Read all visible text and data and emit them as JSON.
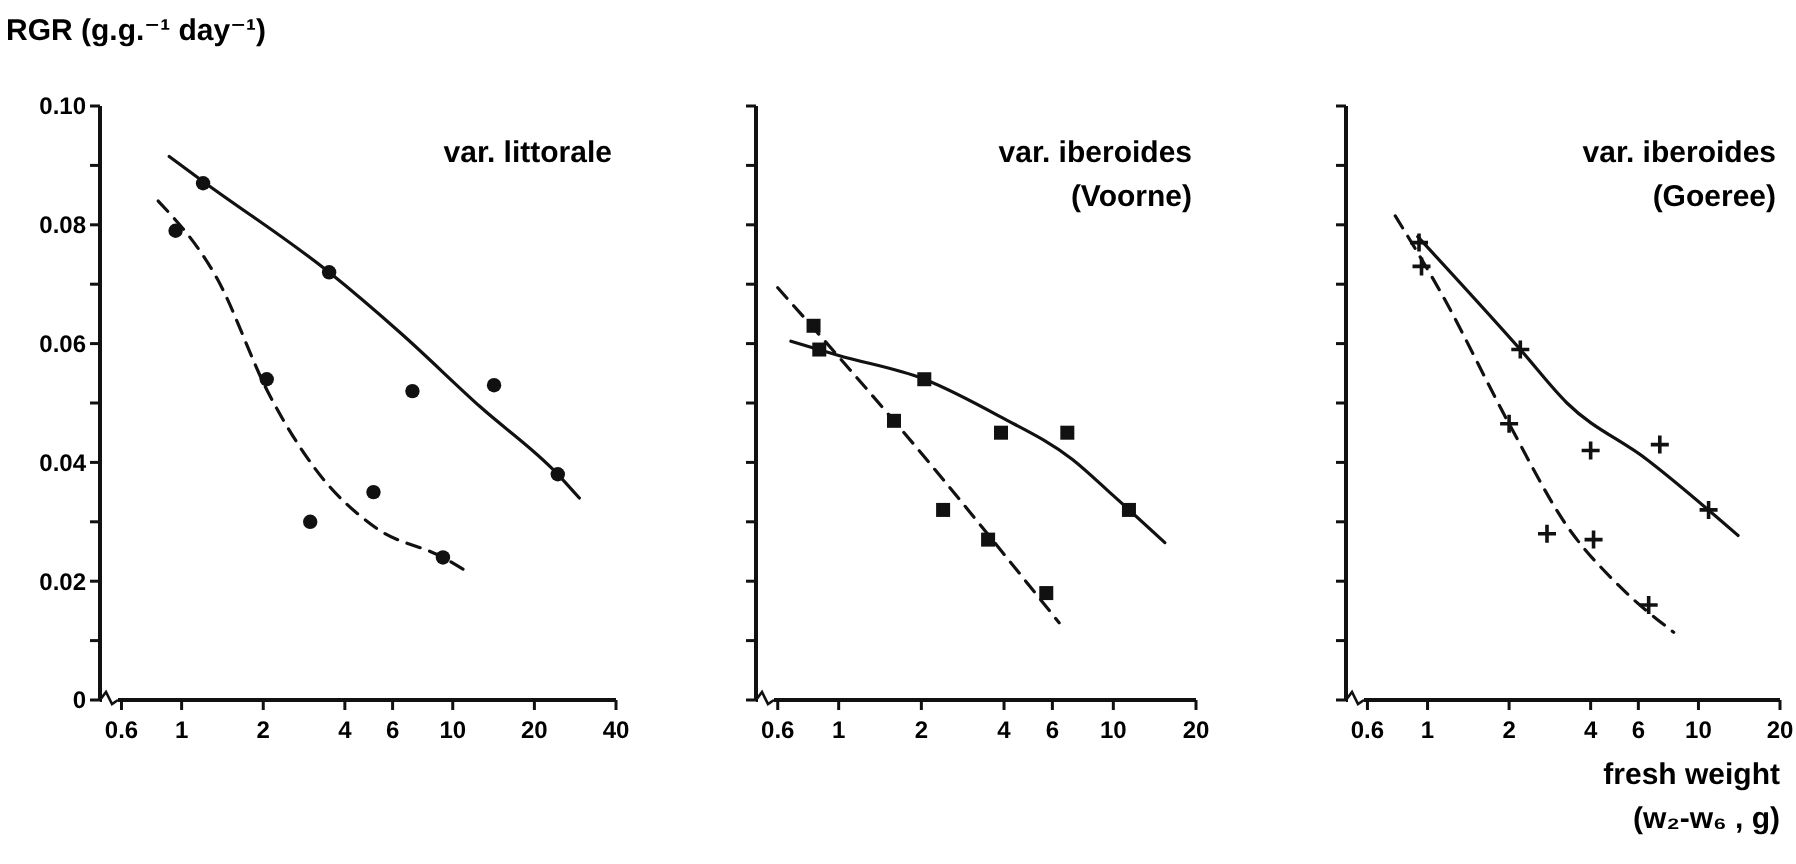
{
  "chart_data": [
    {
      "type": "scatter",
      "title": "var. littorale",
      "ylabel": "RGR (g.g.⁻¹ day⁻¹)",
      "log": "x",
      "xlim": [
        0.5,
        40
      ],
      "ylim": [
        0,
        0.1
      ],
      "xticks": [
        0.6,
        1,
        2,
        4,
        6,
        10,
        20,
        40
      ],
      "yticks": [
        0,
        {
          "value": 0.01,
          "label": null
        },
        0.02,
        {
          "value": 0.03,
          "label": null
        },
        0.04,
        {
          "value": 0.05,
          "label": null
        },
        0.06,
        {
          "value": 0.07,
          "label": null
        },
        0.08,
        {
          "value": 0.09,
          "label": null
        },
        {
          "value": 0.1,
          "label": "0.10"
        }
      ],
      "series": [
        {
          "marker": "circle",
          "color": "#111111",
          "x": [
            1.2,
            3.5,
            7.1,
            14.2,
            24.4,
            0.95,
            2.06,
            2.98,
            5.1,
            9.2
          ],
          "values": [
            0.087,
            0.072,
            0.052,
            0.053,
            0.038,
            0.079,
            0.054,
            0.03,
            0.035,
            0.024
          ]
        },
        {
          "type": "line",
          "line_style": "solid",
          "color": "#111111",
          "x": [
            0.9,
            1.2,
            3.5,
            6.45,
            12.6,
            24.4,
            29.3
          ],
          "values": [
            0.0915,
            0.0873,
            0.072,
            0.0617,
            0.0494,
            0.038,
            0.034
          ]
        },
        {
          "type": "line",
          "line_style": "dashed",
          "color": "#111111",
          "x": [
            0.82,
            1.35,
            2.1,
            3.1,
            5.2,
            9.2,
            11.3
          ],
          "values": [
            0.084,
            0.071,
            0.0515,
            0.039,
            0.029,
            0.024,
            0.0216
          ]
        }
      ]
    },
    {
      "type": "scatter",
      "title": "var. iberoides\n(Voorne)",
      "log": "x",
      "xlim": [
        0.5,
        20
      ],
      "ylim": [
        0,
        0.1
      ],
      "tick_labels": "x",
      "xticks": [
        0.6,
        1,
        2,
        4,
        6,
        10,
        20
      ],
      "yticks": [
        0,
        0.01,
        0.02,
        0.03,
        0.04,
        0.05,
        0.06,
        0.07,
        0.08,
        0.09,
        0.1
      ],
      "series": [
        {
          "marker": "square",
          "color": "#111111",
          "x": [
            0.81,
            0.85,
            2.05,
            1.59,
            2.4,
            3.9,
            3.5,
            6.8,
            5.7,
            11.4
          ],
          "values": [
            0.063,
            0.059,
            0.054,
            0.047,
            0.032,
            0.045,
            0.027,
            0.045,
            0.018,
            0.032
          ]
        },
        {
          "type": "line",
          "line_style": "solid",
          "color": "#111111",
          "x": [
            0.67,
            1.0,
            2.05,
            3.84,
            7.1,
            10,
            15.4
          ],
          "values": [
            0.0604,
            0.058,
            0.054,
            0.0478,
            0.0405,
            0.0344,
            0.0265
          ]
        },
        {
          "type": "line",
          "line_style": "dashed",
          "color": "#111111",
          "x": [
            0.6,
            1.59,
            6.35
          ],
          "values": [
            0.0694,
            0.047,
            0.013
          ]
        }
      ]
    },
    {
      "type": "scatter",
      "title": "var. iberoides\n(Goeree)",
      "xlabel": "fresh weight\n(w₂-w₆ , g)",
      "log": "x",
      "xlim": [
        0.5,
        20
      ],
      "ylim": [
        0,
        0.1
      ],
      "tick_labels": "x",
      "xticks": [
        0.6,
        1,
        2,
        4,
        6,
        10,
        20
      ],
      "yticks": [
        0,
        0.01,
        0.02,
        0.03,
        0.04,
        0.05,
        0.06,
        0.07,
        0.08,
        0.09,
        0.1
      ],
      "series": [
        {
          "marker": "cross",
          "color": "#111111",
          "x": [
            0.93,
            0.95,
            2.2,
            2.0,
            4.0,
            7.2,
            2.76,
            4.1,
            6.55,
            10.9
          ],
          "values": [
            0.077,
            0.073,
            0.059,
            0.0465,
            0.042,
            0.043,
            0.028,
            0.027,
            0.016,
            0.032
          ]
        },
        {
          "type": "line",
          "line_style": "solid",
          "color": "#111111",
          "x": [
            0.92,
            2.2,
            3.27,
            6.45,
            14
          ],
          "values": [
            0.078,
            0.059,
            0.05,
            0.0405,
            0.0277
          ]
        },
        {
          "type": "line",
          "line_style": "dashed",
          "color": "#111111",
          "x": [
            0.76,
            1.12,
            2.0,
            3.27,
            5.1,
            8.1
          ],
          "values": [
            0.0815,
            0.0686,
            0.0465,
            0.0293,
            0.0192,
            0.0114
          ]
        }
      ]
    }
  ]
}
